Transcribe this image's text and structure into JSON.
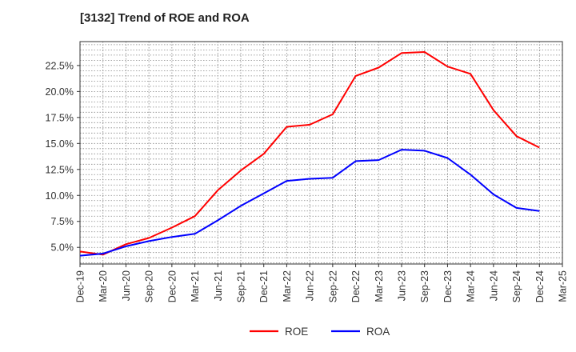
{
  "chart_data": {
    "type": "line",
    "title": "[3132]  Trend of ROE and ROA",
    "xlabel": "",
    "ylabel": "",
    "categories": [
      "Dec-19",
      "Mar-20",
      "Jun-20",
      "Sep-20",
      "Dec-20",
      "Mar-21",
      "Jun-21",
      "Sep-21",
      "Dec-21",
      "Mar-22",
      "Jun-22",
      "Sep-22",
      "Dec-22",
      "Mar-23",
      "Jun-23",
      "Sep-23",
      "Dec-23",
      "Mar-24",
      "Jun-24",
      "Sep-24",
      "Dec-24",
      "Mar-25"
    ],
    "series": [
      {
        "name": "ROE",
        "color": "#ff0000",
        "values": [
          4.6,
          4.3,
          5.3,
          5.9,
          6.9,
          8.0,
          10.5,
          12.4,
          14.0,
          16.6,
          16.8,
          17.8,
          21.5,
          22.3,
          23.7,
          23.8,
          22.4,
          21.7,
          18.2,
          15.7,
          14.6,
          null
        ]
      },
      {
        "name": "ROA",
        "color": "#0000ff",
        "values": [
          4.2,
          4.4,
          5.1,
          5.6,
          6.0,
          6.3,
          7.6,
          9.0,
          10.2,
          11.4,
          11.6,
          11.7,
          13.3,
          13.4,
          14.4,
          14.3,
          13.6,
          12.0,
          10.1,
          8.8,
          8.5,
          null
        ]
      }
    ],
    "ylim": [
      3.4,
      24.8
    ],
    "yticks": [
      5.0,
      7.5,
      10.0,
      12.5,
      15.0,
      17.5,
      20.0,
      22.5
    ],
    "ytick_labels": [
      "5.0%",
      "7.5%",
      "10.0%",
      "12.5%",
      "15.0%",
      "17.5%",
      "20.0%",
      "22.5%"
    ],
    "grid": true,
    "legend_position": "bottom-center"
  }
}
